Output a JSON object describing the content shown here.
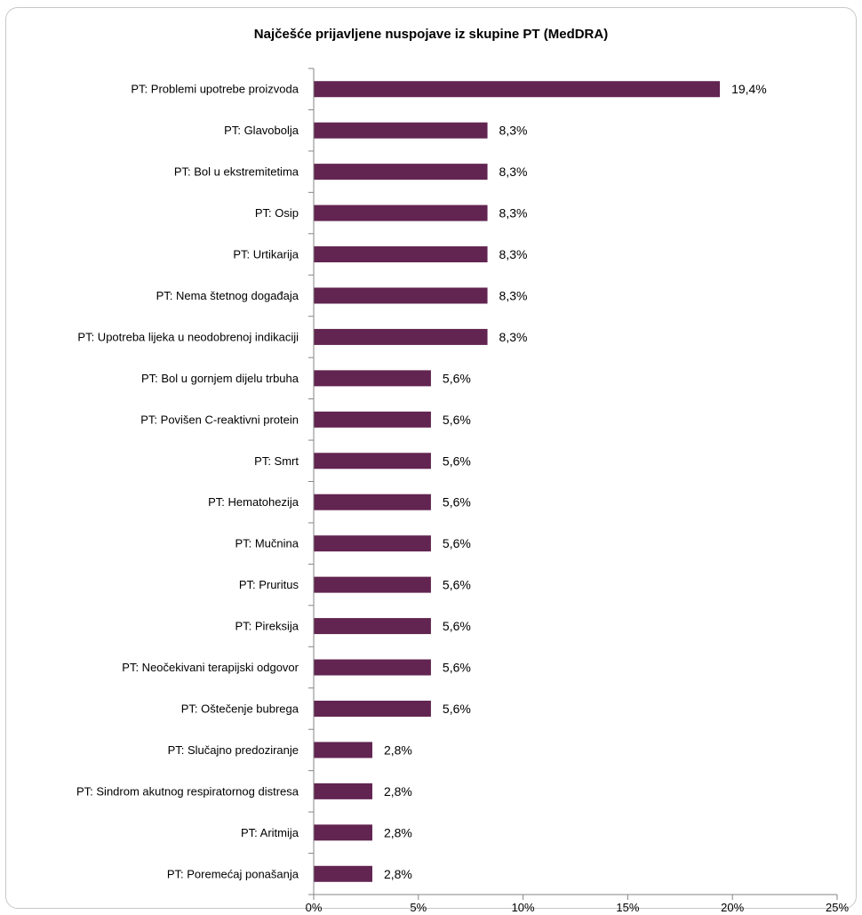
{
  "chart_data": {
    "type": "bar",
    "orientation": "horizontal",
    "title": "Najčešće prijavljene nuspojave iz skupine PT (MedDRA)",
    "xlabel": "",
    "ylabel": "",
    "xlim": [
      0,
      25
    ],
    "x_ticks": [
      "0%",
      "5%",
      "10%",
      "15%",
      "20%",
      "25%"
    ],
    "x_tick_values": [
      0,
      5,
      10,
      15,
      20,
      25
    ],
    "grid": false,
    "legend": "none",
    "bar_color": "#622450",
    "categories": [
      "PT: Problemi upotrebe proizvoda",
      "PT: Glavobolja",
      "PT: Bol u ekstremitetima",
      "PT: Osip",
      "PT: Urtikarija",
      "PT: Nema štetnog događaja",
      "PT: Upotreba lijeka u neodobrenoj indikaciji",
      "PT: Bol u gornjem dijelu trbuha",
      "PT: Povišen C-reaktivni protein",
      "PT: Smrt",
      "PT: Hematohezija",
      "PT: Mučnina",
      "PT: Pruritus",
      "PT: Pireksija",
      "PT: Neočekivani terapijski odgovor",
      "PT: Oštečenje bubrega",
      "PT: Slučajno predoziranje",
      "PT: Sindrom akutnog respiratornog distresa",
      "PT: Aritmija",
      "PT: Poremećaj ponašanja"
    ],
    "values": [
      19.4,
      8.3,
      8.3,
      8.3,
      8.3,
      8.3,
      8.3,
      5.6,
      5.6,
      5.6,
      5.6,
      5.6,
      5.6,
      5.6,
      5.6,
      5.6,
      2.8,
      2.8,
      2.8,
      2.8
    ],
    "value_labels": [
      "19,4%",
      "8,3%",
      "8,3%",
      "8,3%",
      "8,3%",
      "8,3%",
      "8,3%",
      "5,6%",
      "5,6%",
      "5,6%",
      "5,6%",
      "5,6%",
      "5,6%",
      "5,6%",
      "5,6%",
      "5,6%",
      "2,8%",
      "2,8%",
      "2,8%",
      "2,8%"
    ]
  }
}
